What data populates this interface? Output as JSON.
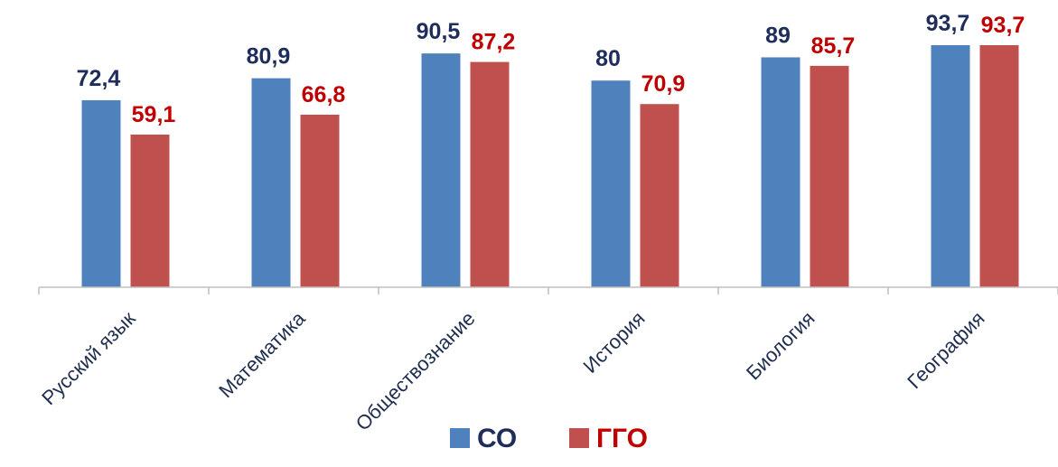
{
  "chart_data": {
    "type": "bar",
    "categories": [
      "Русский язык",
      "Математика",
      "Обществознание",
      "История",
      "Биология",
      "География"
    ],
    "series": [
      {
        "name": "СО",
        "values": [
          72.4,
          80.9,
          90.5,
          80,
          89,
          93.7
        ],
        "labels": [
          "72,4",
          "80,9",
          "90,5",
          "80",
          "89",
          "93,7"
        ],
        "color": "#4f81bd",
        "label_color": "#1f2d5c"
      },
      {
        "name": "ГГО",
        "values": [
          59.1,
          66.8,
          87.2,
          70.9,
          85.7,
          93.7
        ],
        "labels": [
          "59,1",
          "66,8",
          "87,2",
          "70,9",
          "85,7",
          "93,7"
        ],
        "color": "#c0504d",
        "label_color": "#c00000"
      }
    ],
    "title": "",
    "xlabel": "",
    "ylabel": "",
    "ylim": [
      0,
      100
    ],
    "grid": false,
    "legend_position": "bottom"
  }
}
